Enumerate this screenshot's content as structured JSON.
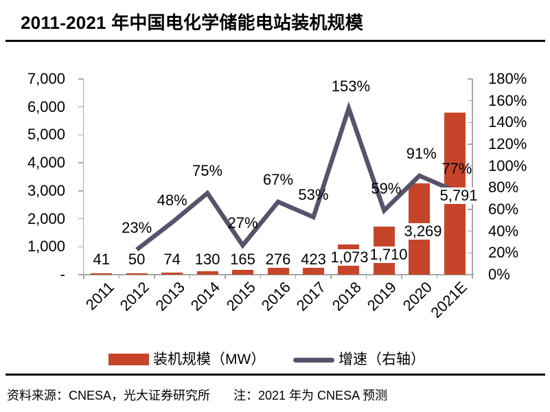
{
  "title": "2011-2021 年中国电化学储能电站装机规模",
  "chart_data": {
    "type": "bar",
    "subtype": "bar-line-combo",
    "categories": [
      "2011",
      "2012",
      "2013",
      "2014",
      "2015",
      "2016",
      "2017",
      "2018",
      "2019",
      "2020",
      "2021E"
    ],
    "series": [
      {
        "name": "装机规模（MW）",
        "chart_type": "bar",
        "axis": "left",
        "values": [
          41,
          50,
          74,
          130,
          165,
          276,
          423,
          1073,
          1710,
          3269,
          5791
        ],
        "value_labels": [
          "41",
          "50",
          "74",
          "130",
          "165",
          "276",
          "423",
          "1,073",
          "1,710",
          "3,269",
          "5,791"
        ],
        "color": "#C6452A"
      },
      {
        "name": "增速（右轴）",
        "chart_type": "line",
        "axis": "right",
        "values": [
          null,
          23,
          48,
          75,
          27,
          67,
          53,
          153,
          59,
          91,
          77
        ],
        "value_labels": [
          "",
          "23%",
          "48%",
          "75%",
          "27%",
          "67%",
          "53%",
          "153%",
          "59%",
          "91%",
          "77%"
        ],
        "color": "#57536B"
      }
    ],
    "left_axis": {
      "min": 0,
      "max": 7000,
      "step": 1000,
      "tick_labels": [
        "-",
        "1,000",
        "2,000",
        "3,000",
        "4,000",
        "5,000",
        "6,000",
        "7,000"
      ]
    },
    "right_axis": {
      "min": 0,
      "max": 180,
      "step": 20,
      "tick_labels": [
        "0%",
        "20%",
        "40%",
        "60%",
        "80%",
        "100%",
        "120%",
        "140%",
        "160%",
        "180%"
      ]
    },
    "grid": false,
    "legend_position": "bottom"
  },
  "legend": [
    {
      "label": "装机规模（MW）",
      "swatch": "bar",
      "color": "#C6452A"
    },
    {
      "label": "增速（右轴）",
      "swatch": "line",
      "color": "#57536B"
    }
  ],
  "footer": {
    "source": "资料来源：CNESA，光大证券研究所",
    "note": "注：2021 年为 CNESA 预测"
  },
  "colors": {
    "bar": "#C6452A",
    "line": "#57536B",
    "axis": "#A6A6A6",
    "text": "#000000",
    "rule": "#000000"
  }
}
